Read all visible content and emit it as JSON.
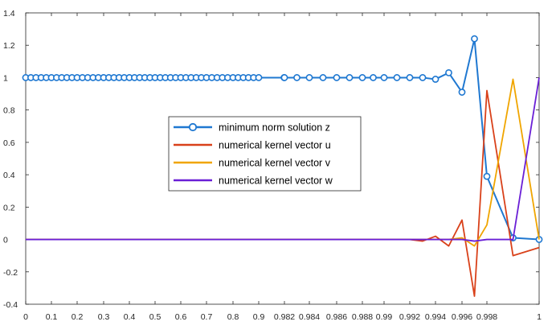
{
  "chart_data": {
    "type": "line",
    "title": "",
    "xlabel": "",
    "ylabel": "",
    "ylim": [
      -0.4,
      1.4
    ],
    "yticks": [
      -0.4,
      -0.2,
      0,
      0.2,
      0.4,
      0.6,
      0.8,
      1,
      1.2,
      1.4
    ],
    "ytick_labels": [
      "-0.4",
      "-0.2",
      "0",
      "0.2",
      "0.4",
      "0.6",
      "0.8",
      "1",
      "1.2",
      "1.4"
    ],
    "x_axis_scale": "piecewise: linear 0 to 0.9, then linear 0.98 to 1",
    "xticks": [
      0,
      0.1,
      0.2,
      0.3,
      0.4,
      0.5,
      0.6,
      0.7,
      0.8,
      0.9,
      0.982,
      0.984,
      0.986,
      0.988,
      0.99,
      0.992,
      0.994,
      0.996,
      0.998,
      1
    ],
    "xtick_labels": [
      "0",
      "0.1",
      "0.2",
      "0.3",
      "0.4",
      "0.5",
      "0.6",
      "0.7",
      "0.8",
      "0.9",
      "0.982",
      "0.984",
      "0.986",
      "0.988",
      "0.99",
      "0.992",
      "0.994",
      "0.996",
      "0.998",
      "1"
    ],
    "grid": false,
    "legend_position": "center",
    "legend": [
      "minimum norm solution z",
      "numerical kernel vector u",
      "numerical kernel vector v",
      "numerical kernel vector w"
    ],
    "colors": [
      "#1f78d1",
      "#d9411a",
      "#f0a500",
      "#6a1fd6"
    ],
    "series": [
      {
        "name": "minimum norm solution z",
        "color": "#1f78d1",
        "marker": "circle",
        "x": [
          0,
          0.02,
          0.04,
          0.06,
          0.08,
          0.1,
          0.12,
          0.14,
          0.16,
          0.18,
          0.2,
          0.22,
          0.24,
          0.26,
          0.28,
          0.3,
          0.32,
          0.34,
          0.36,
          0.38,
          0.4,
          0.42,
          0.44,
          0.46,
          0.48,
          0.5,
          0.52,
          0.54,
          0.56,
          0.58,
          0.6,
          0.62,
          0.64,
          0.66,
          0.68,
          0.7,
          0.72,
          0.74,
          0.76,
          0.78,
          0.8,
          0.82,
          0.84,
          0.86,
          0.88,
          0.9,
          0.981,
          0.982,
          0.983,
          0.984,
          0.985,
          0.986,
          0.987,
          0.988,
          0.989,
          0.99,
          0.991,
          0.992,
          0.993,
          0.994,
          0.995,
          0.996,
          0.997,
          0.998,
          0.999,
          1
        ],
        "y": [
          1,
          1,
          1,
          1,
          1,
          1,
          1,
          1,
          1,
          1,
          1,
          1,
          1,
          1,
          1,
          1,
          1,
          1,
          1,
          1,
          1,
          1,
          1,
          1,
          1,
          1,
          1,
          1,
          1,
          1,
          1,
          1,
          1,
          1,
          1,
          1,
          1,
          1,
          1,
          1,
          1,
          1,
          1,
          1,
          1,
          1,
          1,
          1,
          1,
          1,
          1,
          1,
          1,
          1,
          1,
          1,
          1,
          1,
          1,
          0.99,
          1.03,
          0.91,
          1.24,
          0.39,
          0.01,
          0
        ]
      },
      {
        "name": "numerical kernel vector u",
        "color": "#d9411a",
        "marker": "none",
        "x": [
          0,
          0.9,
          0.991,
          0.992,
          0.993,
          0.994,
          0.995,
          0.996,
          0.997,
          0.998,
          0.999,
          1
        ],
        "y": [
          0,
          0,
          0,
          0,
          -0.01,
          0.02,
          -0.04,
          0.12,
          -0.35,
          0.92,
          -0.1,
          -0.05
        ]
      },
      {
        "name": "numerical kernel vector v",
        "color": "#f0a500",
        "marker": "none",
        "x": [
          0,
          0.9,
          0.994,
          0.995,
          0.996,
          0.997,
          0.998,
          0.999,
          1
        ],
        "y": [
          0,
          0,
          0,
          0,
          0.01,
          -0.04,
          0.09,
          0.99,
          0
        ]
      },
      {
        "name": "numerical kernel vector w",
        "color": "#6a1fd6",
        "marker": "none",
        "x": [
          0,
          0.9,
          0.996,
          0.997,
          0.998,
          0.999,
          1
        ],
        "y": [
          0,
          0,
          0,
          -0.01,
          0,
          0,
          1
        ]
      }
    ]
  }
}
